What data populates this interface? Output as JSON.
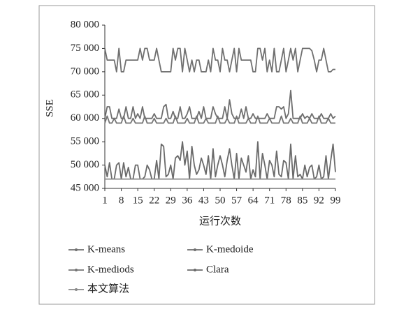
{
  "chart_data": {
    "type": "line",
    "xlabel": "运行次数",
    "ylabel": "SSE",
    "x": [
      1,
      2,
      3,
      4,
      5,
      6,
      7,
      8,
      9,
      10,
      11,
      12,
      13,
      14,
      15,
      16,
      17,
      18,
      19,
      20,
      21,
      22,
      23,
      24,
      25,
      26,
      27,
      28,
      29,
      30,
      31,
      32,
      33,
      34,
      35,
      36,
      37,
      38,
      39,
      40,
      41,
      42,
      43,
      44,
      45,
      46,
      47,
      48,
      49,
      50,
      51,
      52,
      53,
      54,
      55,
      56,
      57,
      58,
      59,
      60,
      61,
      62,
      63,
      64,
      65,
      66,
      67,
      68,
      69,
      70,
      71,
      72,
      73,
      74,
      75,
      76,
      77,
      78,
      79,
      80,
      81,
      82,
      83,
      84,
      85,
      86,
      87,
      88,
      89,
      90,
      91,
      92,
      93,
      94,
      95,
      96,
      97,
      98,
      99
    ],
    "xlim": [
      1,
      99
    ],
    "xticks": [
      1,
      8,
      15,
      22,
      29,
      36,
      43,
      50,
      57,
      64,
      71,
      78,
      85,
      92,
      99
    ],
    "ylim": [
      45000,
      80000
    ],
    "yticks": [
      {
        "value": 45000,
        "label": "45 000"
      },
      {
        "value": 50000,
        "label": "50 000"
      },
      {
        "value": 55000,
        "label": "55 000"
      },
      {
        "value": 60000,
        "label": "60 000"
      },
      {
        "value": 65000,
        "label": "65 000"
      },
      {
        "value": 70000,
        "label": "70 000"
      },
      {
        "value": 75000,
        "label": "75 000"
      },
      {
        "value": 80000,
        "label": "80 000"
      }
    ],
    "series": [
      {
        "name": "K-means",
        "color": "#707070",
        "values": [
          75000,
          72500,
          72500,
          72500,
          72500,
          70000,
          75000,
          70000,
          70000,
          72500,
          72500,
          72500,
          72500,
          72500,
          72500,
          75000,
          72500,
          75000,
          75000,
          72500,
          72500,
          72500,
          75000,
          72500,
          70000,
          70000,
          70000,
          70000,
          70000,
          75000,
          72500,
          75000,
          75000,
          70000,
          75000,
          72500,
          70000,
          72500,
          70000,
          72500,
          72500,
          70000,
          70000,
          70000,
          72500,
          70000,
          75000,
          72500,
          72500,
          70000,
          75000,
          72500,
          72500,
          70000,
          72500,
          75000,
          70000,
          75000,
          72500,
          72500,
          72500,
          72500,
          72500,
          70000,
          70000,
          75000,
          75000,
          72500,
          75000,
          70000,
          72500,
          70000,
          75000,
          70000,
          70000,
          72500,
          75000,
          70000,
          72500,
          75000,
          72500,
          75000,
          70000,
          72500,
          75000,
          75000,
          75000,
          75000,
          74500,
          72500,
          70000,
          72500,
          72500,
          75000,
          72500,
          70000,
          70000,
          70500,
          70500
        ]
      },
      {
        "name": "K-medoide",
        "color": "#6e6e6e",
        "values": [
          60000,
          62500,
          62500,
          60000,
          60000,
          60000,
          62000,
          60000,
          60000,
          62500,
          60000,
          60000,
          62500,
          60000,
          61000,
          60000,
          62500,
          60000,
          60000,
          60000,
          60000,
          61000,
          60000,
          60000,
          60000,
          62500,
          63000,
          60000,
          60000,
          61500,
          60000,
          60000,
          62500,
          60000,
          60000,
          61000,
          62500,
          60000,
          60000,
          60000,
          61500,
          60000,
          62500,
          60000,
          60000,
          60000,
          62500,
          61000,
          60000,
          60000,
          60000,
          62500,
          60000,
          64000,
          61000,
          60000,
          60000,
          60000,
          62000,
          60000,
          62500,
          60000,
          60000,
          61000,
          60000,
          60000,
          60000,
          60000,
          60000,
          61000,
          60000,
          60000,
          60000,
          62500,
          62500,
          62000,
          62500,
          60000,
          61000,
          66000,
          60000,
          60000,
          60000,
          60000,
          61000,
          60000,
          60500,
          60000,
          61000,
          60000,
          60000,
          60000,
          61000,
          60000,
          60000,
          60000,
          61000,
          60000,
          60500
        ]
      },
      {
        "name": "K-mediods",
        "color": "#747474",
        "values": [
          59000,
          60500,
          59000,
          59000,
          60000,
          59000,
          59000,
          59000,
          60500,
          59000,
          59000,
          59000,
          60000,
          59000,
          59000,
          59000,
          59000,
          60500,
          59000,
          59000,
          59000,
          60000,
          59000,
          59000,
          59000,
          59000,
          60000,
          59000,
          59000,
          59000,
          60500,
          59000,
          59000,
          59000,
          59000,
          60000,
          59000,
          59000,
          59000,
          60500,
          59000,
          59000,
          59000,
          60000,
          59000,
          59000,
          59000,
          59000,
          60500,
          59000,
          59000,
          59000,
          60000,
          59000,
          59000,
          59000,
          60500,
          59000,
          59000,
          59000,
          59000,
          60000,
          59000,
          59000,
          59000,
          60500,
          59000,
          59000,
          59000,
          59000,
          60000,
          59000,
          59000,
          59000,
          59000,
          60500,
          59000,
          59000,
          59000,
          60000,
          59000,
          59000,
          59000,
          60500,
          59000,
          59000,
          59000,
          60000,
          59000,
          59000,
          59000,
          60500,
          59000,
          59000,
          59000,
          60000,
          59000,
          59000,
          59000
        ]
      },
      {
        "name": "Clara",
        "color": "#6a6a6a",
        "values": [
          50000,
          47500,
          50500,
          47000,
          47000,
          50000,
          50500,
          47000,
          50500,
          47500,
          49500,
          47000,
          47000,
          50000,
          50000,
          47000,
          47000,
          47500,
          50000,
          49000,
          47000,
          47000,
          51000,
          47000,
          54500,
          54000,
          47500,
          48000,
          50000,
          47000,
          51500,
          52000,
          51000,
          55000,
          50000,
          53000,
          47000,
          54000,
          50000,
          48000,
          49000,
          51500,
          50000,
          48000,
          52000,
          47000,
          53500,
          47500,
          50000,
          52000,
          50000,
          47500,
          51000,
          53500,
          50000,
          47000,
          52500,
          47000,
          51500,
          50000,
          48500,
          52000,
          47000,
          49000,
          47500,
          55000,
          47000,
          52500,
          50000,
          47000,
          51000,
          50000,
          47500,
          53000,
          48000,
          47500,
          51000,
          50500,
          47000,
          54500,
          47000,
          52000,
          47500,
          48000,
          47000,
          50000,
          47500,
          49500,
          50000,
          47000,
          47500,
          50000,
          47000,
          47500,
          52000,
          47000,
          51000,
          54500,
          48500
        ]
      },
      {
        "name": "本文算法",
        "color": "#8a8a8a",
        "values": [
          47000,
          47000,
          47000,
          47000,
          47000,
          47000,
          47000,
          47000,
          47000,
          47000,
          47000,
          47000,
          47000,
          47000,
          47000,
          47000,
          47000,
          47000,
          47000,
          47000,
          47000,
          47000,
          47000,
          47000,
          47000,
          47000,
          47000,
          47000,
          47000,
          47000,
          47000,
          47000,
          47000,
          47000,
          47000,
          47000,
          47000,
          47000,
          47000,
          47000,
          47000,
          47000,
          47000,
          47000,
          47000,
          47000,
          47000,
          47000,
          47000,
          47000,
          47000,
          47000,
          47000,
          47000,
          47000,
          47000,
          47000,
          47000,
          47000,
          47000,
          47000,
          47000,
          47000,
          47000,
          47000,
          47000,
          47000,
          47000,
          47000,
          47000,
          47000,
          47000,
          47000,
          47000,
          47000,
          47000,
          47000,
          47000,
          47000,
          47000,
          47000,
          47000,
          47000,
          47000,
          47000,
          47000,
          47000,
          47000,
          47000,
          47000,
          47000,
          47000,
          47000,
          47000,
          47000,
          47000,
          47000,
          47000,
          47000
        ]
      }
    ]
  }
}
